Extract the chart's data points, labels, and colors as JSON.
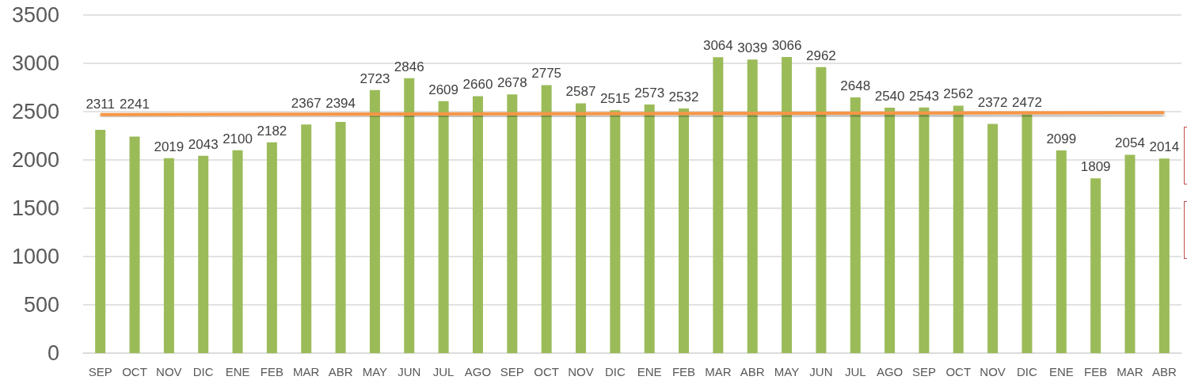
{
  "chart_data": {
    "type": "bar",
    "categories": [
      "SEP",
      "OCT",
      "NOV",
      "DIC",
      "ENE",
      "FEB",
      "MAR",
      "ABR",
      "MAY",
      "JUN",
      "JUL",
      "AGO",
      "SEP",
      "OCT",
      "NOV",
      "DIC",
      "ENE",
      "FEB",
      "MAR",
      "ABR",
      "MAY",
      "JUN",
      "JUL",
      "AGO",
      "SEP",
      "OCT",
      "NOV",
      "DIC",
      "ENE",
      "FEB",
      "MAR",
      "ABR"
    ],
    "series": [
      {
        "color": "#9bbb59",
        "values": [
          2311,
          2241,
          2019,
          2043,
          2100,
          2182,
          2367,
          2394,
          2723,
          2846,
          2609,
          2660,
          2678,
          2775,
          2587,
          2515,
          2573,
          2532,
          3064,
          3039,
          3066,
          2962,
          2648,
          2540,
          2543,
          2562,
          2372,
          2472,
          2099,
          1809,
          2054,
          2014
        ],
        "value_labels": [
          "2311",
          "2241",
          "2019",
          "2043",
          "2100",
          "2182",
          "2367",
          "2394",
          "2723",
          "2846",
          "2609",
          "2660",
          "2678",
          "2775",
          "2587",
          "2515",
          "2573",
          "2532",
          "3064",
          "3039",
          "3066",
          "2962",
          "2648",
          "2540",
          "2543",
          "2562",
          "2372",
          "2472",
          "2099",
          "1809",
          "2054",
          "2014"
        ]
      },
      {
        "type": "line",
        "color": "#f79646",
        "values": [
          2470,
          null,
          null,
          null,
          null,
          null,
          null,
          null,
          null,
          null,
          null,
          null,
          null,
          null,
          null,
          null,
          null,
          null,
          null,
          null,
          null,
          null,
          null,
          null,
          null,
          null,
          null,
          null,
          null,
          null,
          null,
          2490
        ]
      }
    ],
    "ylim": [
      0,
      3500
    ],
    "yticks": [
      0,
      500,
      1000,
      1500,
      2000,
      2500,
      3000,
      3500
    ],
    "grid": "y",
    "marker": "none",
    "line_style": "solid"
  }
}
